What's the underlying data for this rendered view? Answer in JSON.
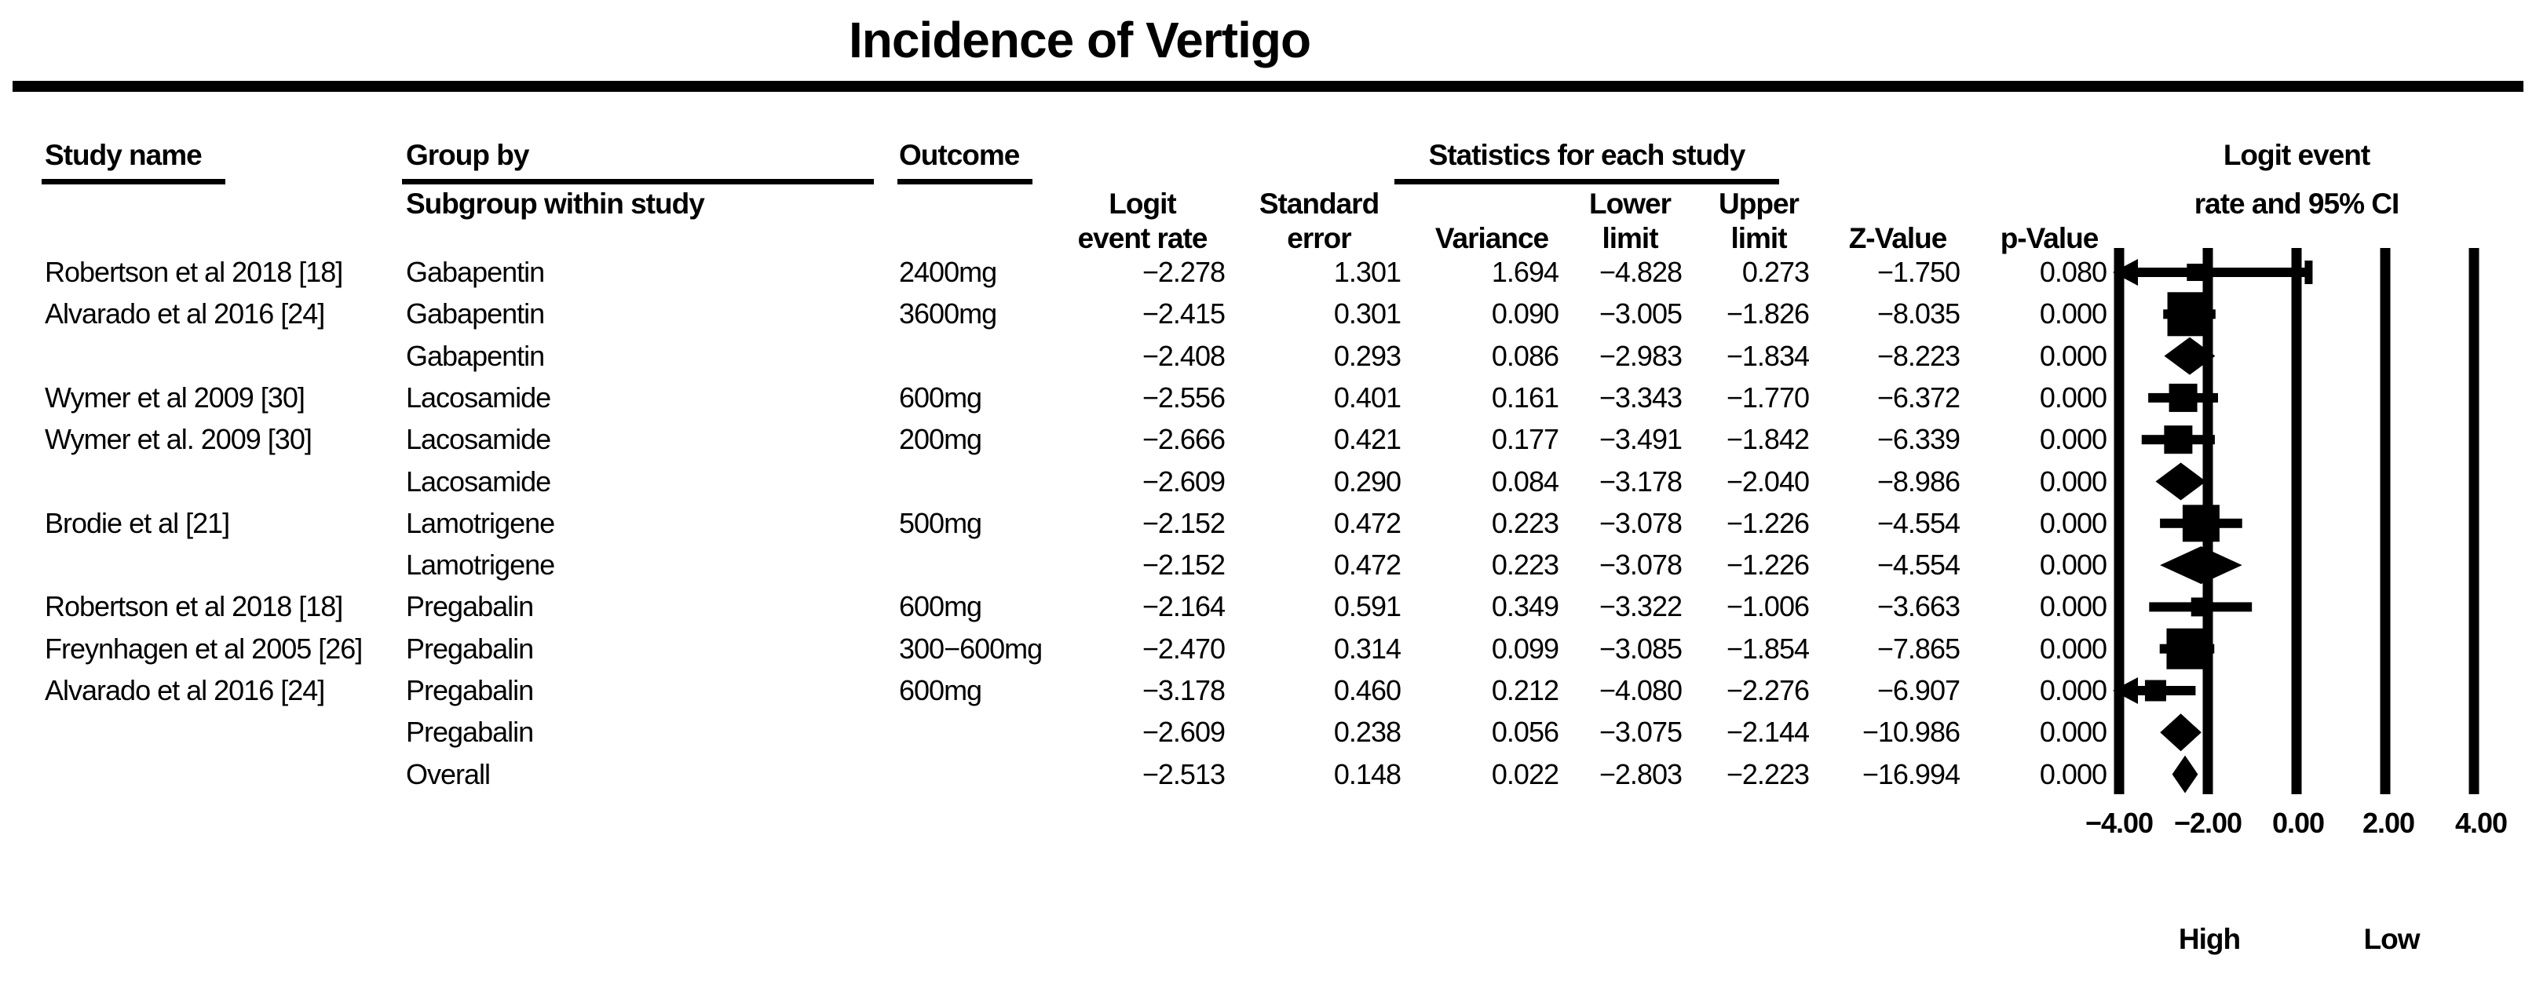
{
  "title": "Incidence of Vertigo",
  "header": {
    "study": "Study name",
    "group_by": "Group by",
    "subgroup": "Subgroup within study",
    "outcome": "Outcome",
    "stats_group": "Statistics for each study",
    "ci_line1": "Logit event",
    "ci_line2": "rate and 95% CI",
    "logit_l1": "Logit",
    "logit_l2": "event rate",
    "se_l1": "Standard",
    "se_l2": "error",
    "variance": "Variance",
    "lower_l1": "Lower",
    "lower_l2": "limit",
    "upper_l1": "Upper",
    "upper_l2": "limit",
    "z": "Z-Value",
    "p": "p-Value"
  },
  "axis": {
    "ticks": [
      "−4.00",
      "−2.00",
      "0.00",
      "2.00",
      "4.00"
    ],
    "left_label": "High",
    "right_label": "Low"
  },
  "chart_data": {
    "type": "forest",
    "title": "Incidence of Vertigo",
    "effect_label": "Logit event rate and 95% CI",
    "xlim": [
      -4,
      4
    ],
    "x_ticks": [
      -4,
      -2,
      0,
      2,
      4
    ],
    "direction_labels": {
      "left": "High",
      "right": "Low"
    },
    "rows": [
      {
        "study": "Robertson et al 2018 [18]",
        "group": "Gabapentin",
        "outcome": "2400mg",
        "logit": "−2.278",
        "se": "1.301",
        "variance": "1.694",
        "lower": "−4.828",
        "upper": "0.273",
        "z": "−1.750",
        "p": "0.080",
        "marker": "square",
        "size": 22,
        "right_cap": true
      },
      {
        "study": "Alvarado et al 2016 [24]",
        "group": "Gabapentin",
        "outcome": "3600mg",
        "logit": "−2.415",
        "se": "0.301",
        "variance": "0.090",
        "lower": "−3.005",
        "upper": "−1.826",
        "z": "−8.035",
        "p": "0.000",
        "marker": "square",
        "size": 56
      },
      {
        "study": "",
        "group": "Gabapentin",
        "outcome": "",
        "logit": "−2.408",
        "se": "0.293",
        "variance": "0.086",
        "lower": "−2.983",
        "upper": "−1.834",
        "z": "−8.223",
        "p": "0.000",
        "marker": "diamond"
      },
      {
        "study": "Wymer et al 2009 [30]",
        "group": "Lacosamide",
        "outcome": "600mg",
        "logit": "−2.556",
        "se": "0.401",
        "variance": "0.161",
        "lower": "−3.343",
        "upper": "−1.770",
        "z": "−6.372",
        "p": "0.000",
        "marker": "square",
        "size": 36
      },
      {
        "study": "Wymer et al. 2009 [30]",
        "group": "Lacosamide",
        "outcome": "200mg",
        "logit": "−2.666",
        "se": "0.421",
        "variance": "0.177",
        "lower": "−3.491",
        "upper": "−1.842",
        "z": "−6.339",
        "p": "0.000",
        "marker": "square",
        "size": 36
      },
      {
        "study": "",
        "group": "Lacosamide",
        "outcome": "",
        "logit": "−2.609",
        "se": "0.290",
        "variance": "0.084",
        "lower": "−3.178",
        "upper": "−2.040",
        "z": "−8.986",
        "p": "0.000",
        "marker": "diamond"
      },
      {
        "study": "Brodie et al [21]",
        "group": "Lamotrigene",
        "outcome": "500mg",
        "logit": "−2.152",
        "se": "0.472",
        "variance": "0.223",
        "lower": "−3.078",
        "upper": "−1.226",
        "z": "−4.554",
        "p": "0.000",
        "marker": "square",
        "size": 47
      },
      {
        "study": "",
        "group": "Lamotrigene",
        "outcome": "",
        "logit": "−2.152",
        "se": "0.472",
        "variance": "0.223",
        "lower": "−3.078",
        "upper": "−1.226",
        "z": "−4.554",
        "p": "0.000",
        "marker": "diamond"
      },
      {
        "study": "Robertson et al 2018 [18]",
        "group": "Pregabalin",
        "outcome": "600mg",
        "logit": "−2.164",
        "se": "0.591",
        "variance": "0.349",
        "lower": "−3.322",
        "upper": "−1.006",
        "z": "−3.663",
        "p": "0.000",
        "marker": "square",
        "size": 24
      },
      {
        "study": "Freynhagen et al 2005 [26]",
        "group": "Pregabalin",
        "outcome": "300−600mg",
        "logit": "−2.470",
        "se": "0.314",
        "variance": "0.099",
        "lower": "−3.085",
        "upper": "−1.854",
        "z": "−7.865",
        "p": "0.000",
        "marker": "square",
        "size": 52
      },
      {
        "study": "Alvarado et al 2016 [24]",
        "group": "Pregabalin",
        "outcome": "600mg",
        "logit": "−3.178",
        "se": "0.460",
        "variance": "0.212",
        "lower": "−4.080",
        "upper": "−2.276",
        "z": "−6.907",
        "p": "0.000",
        "marker": "square",
        "size": 27
      },
      {
        "study": "",
        "group": "Pregabalin",
        "outcome": "",
        "logit": "−2.609",
        "se": "0.238",
        "variance": "0.056",
        "lower": "−3.075",
        "upper": "−2.144",
        "z": "−10.986",
        "p": "0.000",
        "marker": "diamond"
      },
      {
        "study": "",
        "group": "Overall",
        "outcome": "",
        "logit": "−2.513",
        "se": "0.148",
        "variance": "0.022",
        "lower": "−2.803",
        "upper": "−2.223",
        "z": "−16.994",
        "p": "0.000",
        "marker": "diamond",
        "overall": true
      }
    ]
  }
}
